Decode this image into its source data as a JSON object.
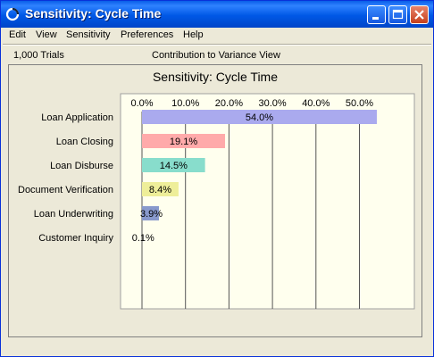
{
  "window": {
    "title": "Sensitivity: Cycle Time",
    "buttons": [
      "minimize",
      "maximize",
      "close"
    ],
    "colors": {
      "titlebar": "#0058e6",
      "close": "#c5401c",
      "face": "#ece9d8"
    }
  },
  "menu": {
    "items": [
      "Edit",
      "View",
      "Sensitivity",
      "Preferences",
      "Help"
    ]
  },
  "info": {
    "trials": "1,000 Trials",
    "view": "Contribution to Variance View"
  },
  "chart_data": {
    "type": "bar",
    "orientation": "horizontal",
    "title": "Sensitivity: Cycle Time",
    "categories": [
      "Loan Application",
      "Loan Closing",
      "Loan Disburse",
      "Document Verification",
      "Loan Underwriting",
      "Customer Inquiry"
    ],
    "values": [
      54.0,
      19.1,
      14.5,
      8.4,
      3.9,
      0.1
    ],
    "data_labels": [
      "54.0%",
      "19.1%",
      "14.5%",
      "8.4%",
      "3.9%",
      "0.1%"
    ],
    "bar_colors": [
      "#aaaaee",
      "#ffaaaa",
      "#88ddcc",
      "#eeee99",
      "#8899cc",
      "#cccccc"
    ],
    "x_ticks": [
      "0.0%",
      "10.0%",
      "20.0%",
      "30.0%",
      "40.0%",
      "50.0%"
    ],
    "xlim": [
      0,
      60
    ],
    "xlabel": "",
    "ylabel": "",
    "grid": true,
    "legend": "none",
    "plot_background": "#ffffee"
  }
}
